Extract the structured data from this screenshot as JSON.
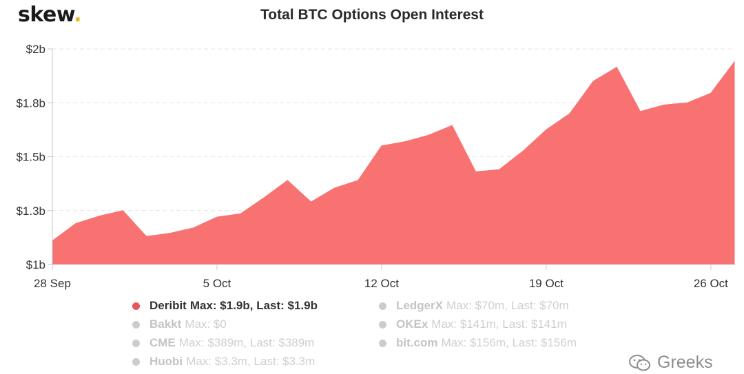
{
  "brand": {
    "name": "skew",
    "dot": ".",
    "accent": "#f2b01e"
  },
  "chart_data": {
    "type": "area",
    "title": "Total BTC Options Open Interest",
    "xlabel": "",
    "ylabel": "",
    "ylim": [
      1.0,
      2.0
    ],
    "yticks": [
      1.0,
      1.25,
      1.5,
      1.75,
      2.0
    ],
    "ytick_labels": [
      "$1b",
      "$1.3b",
      "$1.5b",
      "$1.8b",
      "$2b"
    ],
    "xticks": [
      0,
      7,
      14,
      21,
      28
    ],
    "xtick_labels": [
      "28 Sep",
      "5 Oct",
      "12 Oct",
      "19 Oct",
      "26 Oct"
    ],
    "xlim": [
      0,
      29
    ],
    "grid": true,
    "legend_position": "bottom",
    "series": [
      {
        "name": "Deribit",
        "color": "#f87272",
        "x": [
          0,
          1,
          2,
          3,
          4,
          5,
          6,
          7,
          8,
          9,
          10,
          11,
          12,
          13,
          14,
          15,
          16,
          17,
          18,
          19,
          20,
          21,
          22,
          23,
          24,
          25,
          26,
          27,
          28,
          29
        ],
        "values": [
          1.11,
          1.19,
          1.225,
          1.25,
          1.13,
          1.145,
          1.17,
          1.22,
          1.235,
          1.31,
          1.39,
          1.29,
          1.355,
          1.39,
          1.55,
          1.57,
          1.6,
          1.645,
          1.43,
          1.44,
          1.525,
          1.625,
          1.7,
          1.85,
          1.915,
          1.71,
          1.74,
          1.75,
          1.795,
          1.94
        ]
      }
    ]
  },
  "legend": [
    {
      "name": "Deribit",
      "stat": "Max: $1.9b, Last: $1.9b",
      "color": "#e8555a",
      "active": true
    },
    {
      "name": "Bakkt",
      "stat": "Max: $0",
      "color": "#cccccc",
      "active": false
    },
    {
      "name": "CME",
      "stat": "Max: $389m, Last: $389m",
      "color": "#cccccc",
      "active": false
    },
    {
      "name": "Huobi",
      "stat": "Max: $3.3m, Last: $3.3m",
      "color": "#cccccc",
      "active": false
    },
    {
      "name": "LedgerX",
      "stat": "Max: $70m, Last: $70m",
      "color": "#cccccc",
      "active": false
    },
    {
      "name": "OKEx",
      "stat": "Max: $141m, Last: $141m",
      "color": "#cccccc",
      "active": false
    },
    {
      "name": "bit.com",
      "stat": "Max: $156m, Last: $156m",
      "color": "#cccccc",
      "active": false
    }
  ],
  "watermark": {
    "text": "Greeks",
    "icon": "wechat-icon"
  }
}
